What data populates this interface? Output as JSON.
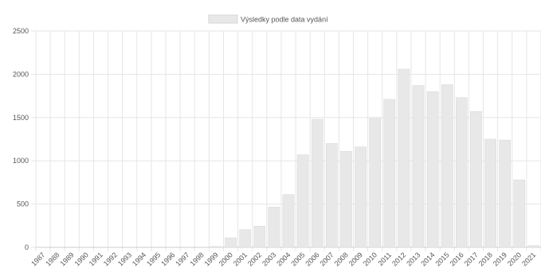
{
  "chart_data": {
    "type": "bar",
    "legend": {
      "label": "Výsledky podle data vydání",
      "position": "top-center"
    },
    "categories": [
      "1987",
      "1988",
      "1989",
      "1990",
      "1991",
      "1992",
      "1993",
      "1994",
      "1995",
      "1996",
      "1997",
      "1998",
      "1999",
      "2000",
      "2001",
      "2002",
      "2003",
      "2004",
      "2005",
      "2006",
      "2007",
      "2008",
      "2009",
      "2010",
      "2011",
      "2012",
      "2013",
      "2014",
      "2015",
      "2016",
      "2017",
      "2018",
      "2019",
      "2020",
      "2021"
    ],
    "series": [
      {
        "name": "Výsledky podle data vydání",
        "values": [
          0,
          0,
          0,
          0,
          0,
          0,
          0,
          0,
          0,
          0,
          0,
          0,
          10,
          110,
          205,
          245,
          465,
          610,
          1070,
          1480,
          1200,
          1110,
          1160,
          1490,
          1710,
          2060,
          1870,
          1800,
          1880,
          1730,
          1570,
          1250,
          1240,
          780,
          20
        ]
      }
    ],
    "ylim": [
      0,
      2500
    ],
    "yticks": [
      0,
      500,
      1000,
      1500,
      2000,
      2500
    ],
    "grid": true,
    "colors": {
      "bar": "#e8e8e8",
      "bar_border": "#d6d6d6",
      "grid": "#e6e6e6",
      "axis": "#cccccc",
      "text": "#555555"
    }
  }
}
